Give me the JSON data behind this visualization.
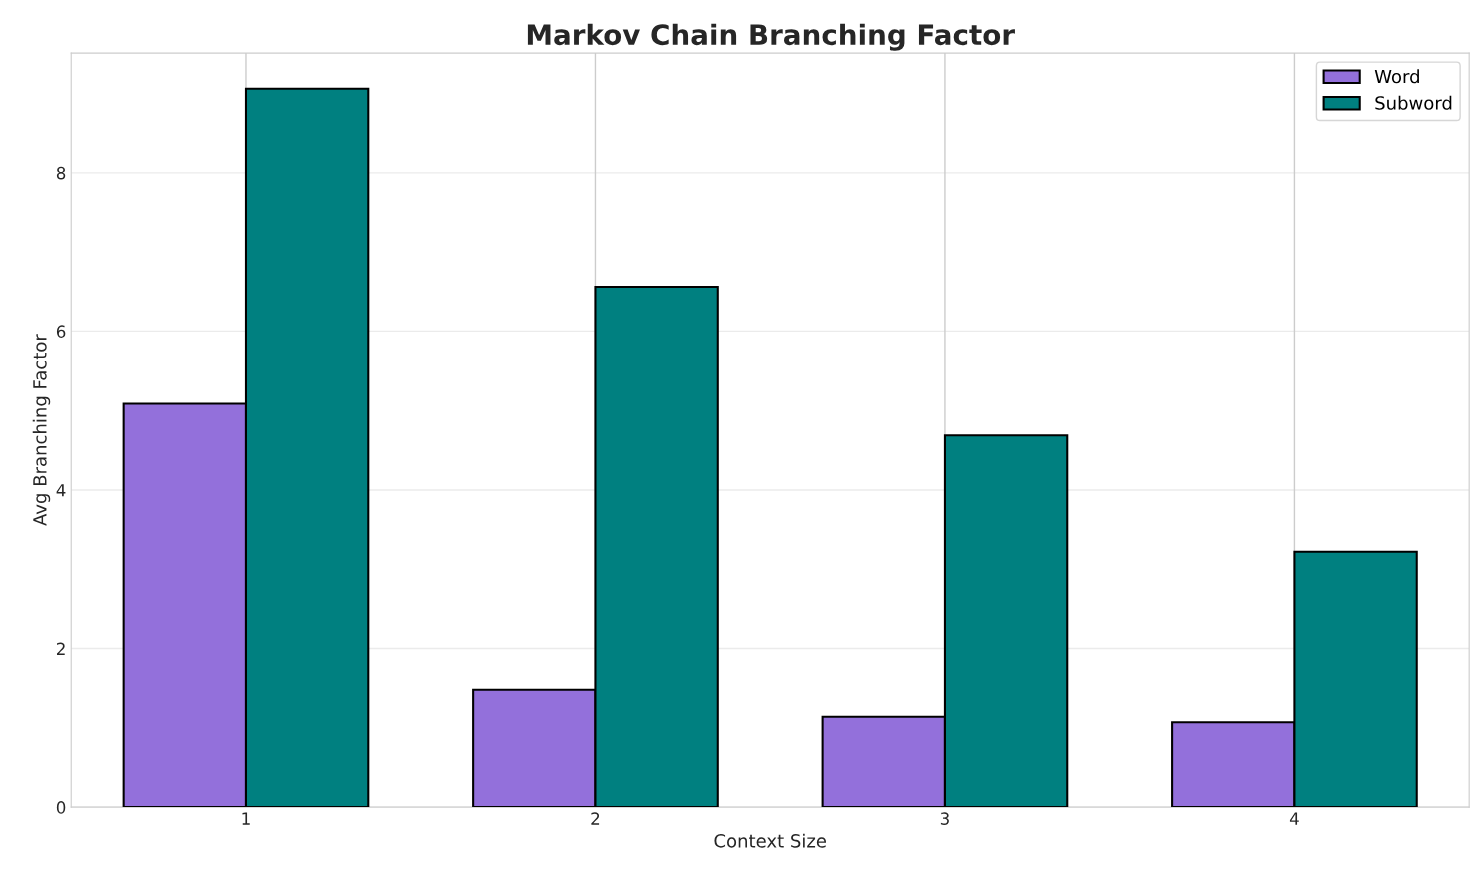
{
  "chart_data": {
    "type": "bar",
    "title": "Markov Chain Branching Factor",
    "xlabel": "Context Size",
    "ylabel": "Avg Branching Factor",
    "categories": [
      "1",
      "2",
      "3",
      "4"
    ],
    "series": [
      {
        "name": "Word",
        "color": "#9370db",
        "values": [
          5.09,
          1.48,
          1.14,
          1.07
        ]
      },
      {
        "name": "Subword",
        "color": "#008080",
        "values": [
          9.06,
          6.56,
          4.69,
          3.22
        ]
      }
    ],
    "ylim": [
      0,
      9.51
    ],
    "yticks": [
      0,
      2,
      4,
      6,
      8
    ],
    "grid": true,
    "legend": "top right"
  }
}
